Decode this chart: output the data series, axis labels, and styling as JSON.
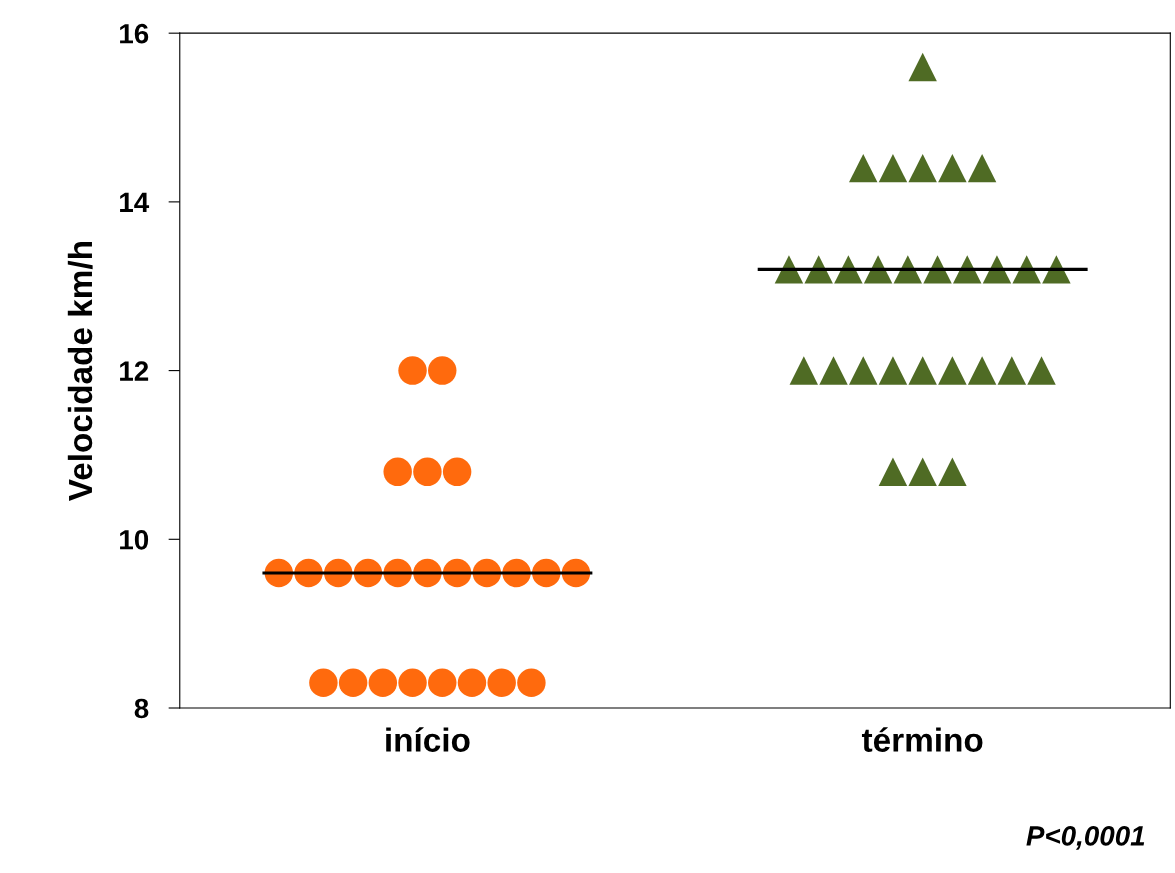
{
  "chart_data": {
    "type": "scatter",
    "ylabel": "Velocidade km/h",
    "categories": [
      "início",
      "término"
    ],
    "ylim": [
      8,
      16
    ],
    "yticks": [
      8,
      10,
      12,
      14,
      16
    ],
    "grid": false,
    "series": [
      {
        "marker": "circle",
        "color": "#ff6a0d",
        "x": [
          "início",
          "início",
          "início",
          "início",
          "início",
          "início",
          "início",
          "início",
          "início",
          "início",
          "início",
          "início",
          "início",
          "início",
          "início",
          "início",
          "início",
          "início",
          "início",
          "início",
          "início",
          "início",
          "início",
          "início"
        ],
        "values": [
          12.0,
          12.0,
          10.8,
          10.8,
          10.8,
          9.6,
          9.6,
          9.6,
          9.6,
          9.6,
          9.6,
          9.6,
          9.6,
          9.6,
          9.6,
          9.6,
          8.3,
          8.3,
          8.3,
          8.3,
          8.3,
          8.3,
          8.3,
          8.3
        ]
      },
      {
        "marker": "triangle",
        "color": "#4f6b24",
        "x": [
          "término",
          "término",
          "término",
          "término",
          "término",
          "término",
          "término",
          "término",
          "término",
          "término",
          "término",
          "término",
          "término",
          "término",
          "término",
          "término",
          "término",
          "término",
          "término",
          "término",
          "término",
          "término",
          "término",
          "término",
          "término",
          "término",
          "término",
          "término"
        ],
        "values": [
          15.6,
          14.4,
          14.4,
          14.4,
          14.4,
          14.4,
          13.2,
          13.2,
          13.2,
          13.2,
          13.2,
          13.2,
          13.2,
          13.2,
          13.2,
          13.2,
          12.0,
          12.0,
          12.0,
          12.0,
          12.0,
          12.0,
          12.0,
          12.0,
          12.0,
          10.8,
          10.8,
          10.8
        ]
      }
    ],
    "ref_lines": [
      {
        "axis": "y",
        "value": 9.6,
        "color": "#000000"
      },
      {
        "axis": "y",
        "value": 13.2,
        "color": "#000000"
      }
    ],
    "annotations": [
      "P<0,0001"
    ]
  }
}
